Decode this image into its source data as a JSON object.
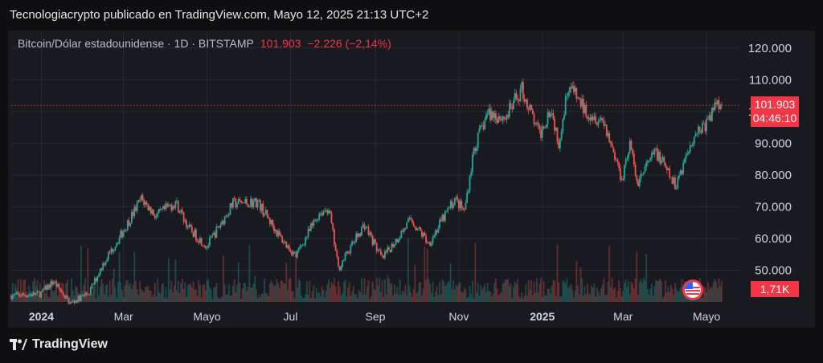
{
  "header": {
    "published_line": "Tecnologiacrypto publicado en TradingView.com, Mayo 12, 2025 21:13 UTC+2"
  },
  "legend": {
    "symbol": "Bitcoin/Dólar estadounidense · 1D · BITSTAMP",
    "last_price": "101.903",
    "change": "−2.226 (−2,14%)"
  },
  "price_tag": {
    "value": "101.903",
    "countdown": "04:46:10"
  },
  "volume_tag": {
    "value": "1,71K"
  },
  "footer": {
    "brand": "TradingView"
  },
  "colors": {
    "up": "#26a69a",
    "down": "#ef5350",
    "accent": "#f23645",
    "grid": "#262a33"
  },
  "icons": [
    "tradingview-logo-icon",
    "us-flag-icon"
  ],
  "chart_data": {
    "type": "candlestick",
    "y_ticks": [
      "120.000",
      "110.000",
      "100.000",
      "90.000",
      "80.000",
      "70.000",
      "60.000",
      "50.000"
    ],
    "y_tick_values": [
      120000,
      110000,
      100000,
      90000,
      80000,
      70000,
      60000,
      50000
    ],
    "ylim": [
      40000,
      125000
    ],
    "x_ticks": [
      {
        "label": "2024",
        "date": "2024-01-01",
        "bold": true
      },
      {
        "label": "Mar",
        "date": "2024-03-01",
        "bold": false
      },
      {
        "label": "Mayo",
        "date": "2024-05-01",
        "bold": false
      },
      {
        "label": "Jul",
        "date": "2024-07-01",
        "bold": false
      },
      {
        "label": "Sep",
        "date": "2024-09-01",
        "bold": false
      },
      {
        "label": "Nov",
        "date": "2024-11-01",
        "bold": false
      },
      {
        "label": "2025",
        "date": "2025-01-01",
        "bold": true
      },
      {
        "label": "Mar",
        "date": "2025-03-01",
        "bold": false
      },
      {
        "label": "Mayo",
        "date": "2025-05-01",
        "bold": false
      }
    ],
    "xlim": [
      "2023-12-10",
      "2025-05-25"
    ],
    "current_price": 101903,
    "price_path": [
      [
        "2023-12-10",
        42000
      ],
      [
        "2023-12-31",
        42500
      ],
      [
        "2024-01-10",
        46500
      ],
      [
        "2024-01-22",
        39500
      ],
      [
        "2024-02-05",
        43000
      ],
      [
        "2024-02-15",
        52000
      ],
      [
        "2024-02-28",
        61000
      ],
      [
        "2024-03-14",
        72500
      ],
      [
        "2024-03-25",
        67000
      ],
      [
        "2024-04-08",
        71500
      ],
      [
        "2024-04-18",
        63000
      ],
      [
        "2024-05-01",
        57500
      ],
      [
        "2024-05-20",
        71000
      ],
      [
        "2024-06-07",
        71500
      ],
      [
        "2024-06-24",
        60000
      ],
      [
        "2024-07-05",
        54500
      ],
      [
        "2024-07-22",
        68000
      ],
      [
        "2024-07-29",
        69500
      ],
      [
        "2024-08-05",
        50500
      ],
      [
        "2024-08-15",
        58000
      ],
      [
        "2024-08-24",
        64500
      ],
      [
        "2024-09-06",
        53500
      ],
      [
        "2024-09-27",
        66000
      ],
      [
        "2024-10-10",
        58500
      ],
      [
        "2024-10-29",
        72500
      ],
      [
        "2024-11-05",
        68500
      ],
      [
        "2024-11-12",
        88000
      ],
      [
        "2024-11-22",
        99500
      ],
      [
        "2024-12-05",
        98000
      ],
      [
        "2024-12-17",
        107000
      ],
      [
        "2024-12-30",
        92500
      ],
      [
        "2025-01-07",
        101500
      ],
      [
        "2025-01-13",
        90500
      ],
      [
        "2025-01-20",
        108500
      ],
      [
        "2025-02-01",
        100500
      ],
      [
        "2025-02-15",
        97000
      ],
      [
        "2025-02-28",
        79000
      ],
      [
        "2025-03-06",
        90000
      ],
      [
        "2025-03-11",
        77500
      ],
      [
        "2025-03-25",
        87500
      ],
      [
        "2025-04-08",
        76500
      ],
      [
        "2025-04-22",
        93000
      ],
      [
        "2025-05-02",
        96500
      ],
      [
        "2025-05-09",
        104000
      ],
      [
        "2025-05-12",
        101903
      ]
    ]
  }
}
